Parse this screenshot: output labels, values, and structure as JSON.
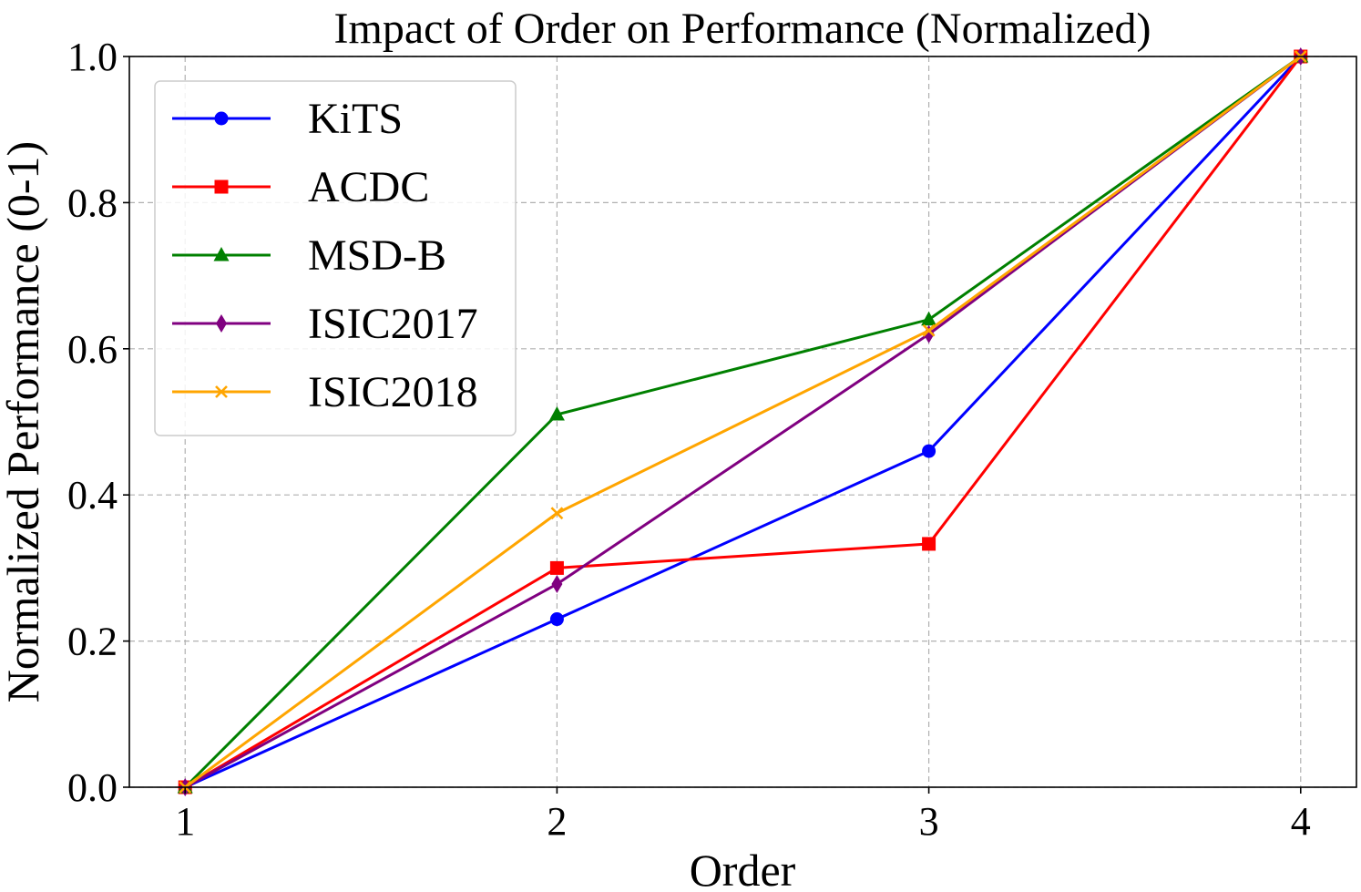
{
  "chart_data": {
    "type": "line",
    "title": "Impact of Order on Performance (Normalized)",
    "xlabel": "Order",
    "ylabel": "Normalized Performance (0-1)",
    "x": [
      1,
      2,
      3,
      4
    ],
    "xticks": [
      1,
      2,
      3,
      4
    ],
    "xtick_labels": [
      "1",
      "2",
      "3",
      "4"
    ],
    "xlim": [
      0.85,
      4.15
    ],
    "ylim": [
      0.0,
      1.0
    ],
    "yticks": [
      0.0,
      0.2,
      0.4,
      0.6,
      0.8,
      1.0
    ],
    "ytick_labels": [
      "0.0",
      "0.2",
      "0.4",
      "0.6",
      "0.8",
      "1.0"
    ],
    "grid": true,
    "legend_position": "upper-left",
    "series": [
      {
        "name": "KiTS",
        "color": "#0000ff",
        "marker": "circle",
        "values": [
          0.0,
          0.23,
          0.46,
          1.0
        ]
      },
      {
        "name": "ACDC",
        "color": "#ff0000",
        "marker": "square",
        "values": [
          0.0,
          0.3,
          0.333,
          1.0
        ]
      },
      {
        "name": "MSD-B",
        "color": "#008000",
        "marker": "triangle",
        "values": [
          0.0,
          0.51,
          0.64,
          1.0
        ]
      },
      {
        "name": "ISIC2017",
        "color": "#800080",
        "marker": "diamond",
        "values": [
          0.0,
          0.278,
          0.62,
          1.0
        ]
      },
      {
        "name": "ISIC2018",
        "color": "#ffa500",
        "marker": "x",
        "values": [
          0.0,
          0.375,
          0.625,
          1.0
        ]
      }
    ]
  }
}
